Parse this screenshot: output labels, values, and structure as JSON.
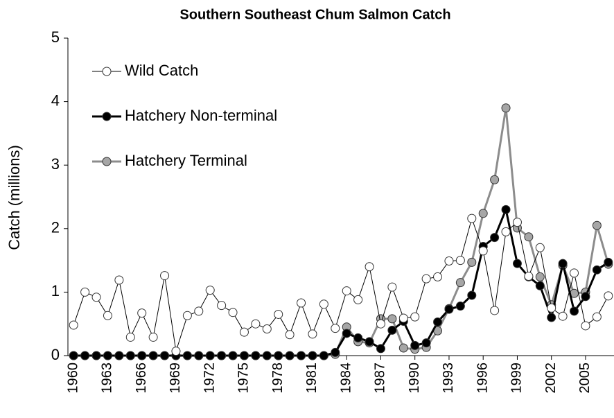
{
  "chart_data": {
    "type": "line",
    "title": "Southern Southeast Chum Salmon Catch",
    "y_label": "Catch (millions)",
    "x": [
      1960,
      1961,
      1962,
      1963,
      1964,
      1965,
      1966,
      1967,
      1968,
      1969,
      1970,
      1971,
      1972,
      1973,
      1974,
      1975,
      1976,
      1977,
      1978,
      1979,
      1980,
      1981,
      1982,
      1983,
      1984,
      1985,
      1986,
      1987,
      1988,
      1989,
      1990,
      1991,
      1992,
      1993,
      1994,
      1995,
      1996,
      1997,
      1998,
      1999,
      2000,
      2001,
      2002,
      2003,
      2004,
      2005,
      2006,
      2007
    ],
    "xlim": [
      1959.5,
      2007.5
    ],
    "xticks": [
      1960,
      1963,
      1966,
      1969,
      1972,
      1975,
      1978,
      1981,
      1984,
      1987,
      1990,
      1993,
      1996,
      1999,
      2002,
      2005
    ],
    "ylim": [
      0,
      5
    ],
    "yticks": [
      0,
      1,
      2,
      3,
      4,
      5
    ],
    "legend": "top-left",
    "series": [
      {
        "name": "Wild Catch",
        "color": "#000000",
        "marker_fill": "#ffffff",
        "line_width": 1,
        "values": [
          0.48,
          1.0,
          0.92,
          0.63,
          1.19,
          0.29,
          0.67,
          0.29,
          1.26,
          0.07,
          0.63,
          0.7,
          1.03,
          0.79,
          0.68,
          0.37,
          0.5,
          0.42,
          0.65,
          0.33,
          0.83,
          0.34,
          0.81,
          0.43,
          1.02,
          0.88,
          1.4,
          0.5,
          1.08,
          0.59,
          0.61,
          1.21,
          1.24,
          1.49,
          1.5,
          2.16,
          1.65,
          0.71,
          1.95,
          2.1,
          1.25,
          1.7,
          0.75,
          0.62,
          1.3,
          0.47,
          0.61,
          0.94
        ]
      },
      {
        "name": "Hatchery Non-terminal",
        "color": "#000000",
        "marker_fill": "#000000",
        "line_width": 3,
        "values": [
          0,
          0,
          0,
          0,
          0,
          0,
          0,
          0,
          0,
          0,
          0,
          0,
          0,
          0,
          0,
          0,
          0,
          0,
          0,
          0,
          0,
          0,
          0,
          0.05,
          0.35,
          0.28,
          0.22,
          0.11,
          0.4,
          0.54,
          0.16,
          0.2,
          0.53,
          0.73,
          0.78,
          0.95,
          1.72,
          1.86,
          2.3,
          1.45,
          1.24,
          1.1,
          0.6,
          1.45,
          0.7,
          0.93,
          1.35,
          1.47
        ]
      },
      {
        "name": "Hatchery Terminal",
        "color": "#8c8c8c",
        "marker_fill": "#a6a6a6",
        "line_width": 3,
        "values": [
          0,
          0,
          0,
          0,
          0,
          0,
          0,
          0,
          0,
          0,
          0,
          0,
          0,
          0,
          0,
          0,
          0,
          0,
          0,
          0,
          0,
          0,
          0,
          0.02,
          0.45,
          0.22,
          0.2,
          0.58,
          0.58,
          0.12,
          0.1,
          0.13,
          0.39,
          0.74,
          1.15,
          1.47,
          2.24,
          2.77,
          3.9,
          2.01,
          1.87,
          1.24,
          0.8,
          1.42,
          0.98,
          1.0,
          2.05,
          1.44
        ]
      }
    ]
  }
}
